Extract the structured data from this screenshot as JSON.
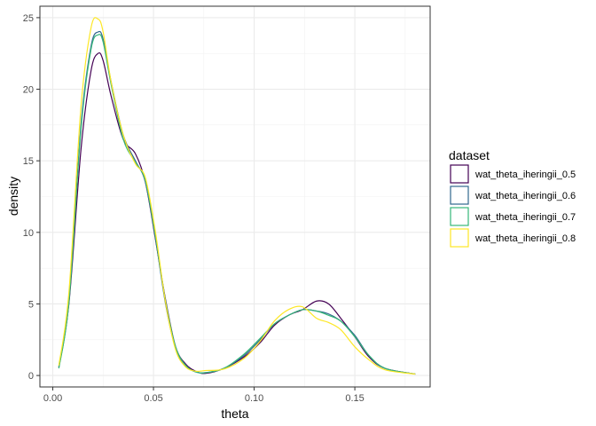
{
  "chart_data": {
    "type": "line",
    "title": "",
    "xlabel": "theta",
    "ylabel": "density",
    "xlim": [
      -0.0064,
      0.1874
    ],
    "ylim": [
      -0.8,
      25.8
    ],
    "x_ticks": [
      0.0,
      0.05,
      0.1,
      0.15
    ],
    "x_tick_labels": [
      "0.00",
      "0.05",
      "0.10",
      "0.15"
    ],
    "y_ticks": [
      0,
      5,
      10,
      15,
      20,
      25
    ],
    "y_tick_labels": [
      "0",
      "5",
      "10",
      "15",
      "20",
      "25"
    ],
    "grid": true,
    "legend": {
      "title": "dataset",
      "position": "right"
    },
    "series": [
      {
        "name": "wat_theta_iheringii_0.5",
        "color": "#440154",
        "x": [
          0.003,
          0.008,
          0.014,
          0.019,
          0.0225,
          0.025,
          0.029,
          0.035,
          0.041,
          0.046,
          0.051,
          0.056,
          0.061,
          0.066,
          0.071,
          0.076,
          0.085,
          0.095,
          0.103,
          0.11,
          0.117,
          0.124,
          0.131,
          0.137,
          0.143,
          0.15,
          0.157,
          0.165,
          0.18
        ],
        "y": [
          0.6,
          5.0,
          15.8,
          21.3,
          22.5,
          22.0,
          19.5,
          16.5,
          15.5,
          13.5,
          9.5,
          5.3,
          2.0,
          0.8,
          0.3,
          0.15,
          0.5,
          1.3,
          2.3,
          3.5,
          4.2,
          4.6,
          5.2,
          5.0,
          4.0,
          2.7,
          1.3,
          0.5,
          0.1
        ]
      },
      {
        "name": "wat_theta_iheringii_0.6",
        "color": "#31688E",
        "x": [
          0.003,
          0.008,
          0.014,
          0.019,
          0.0225,
          0.025,
          0.029,
          0.035,
          0.041,
          0.046,
          0.051,
          0.056,
          0.061,
          0.066,
          0.071,
          0.076,
          0.085,
          0.095,
          0.103,
          0.11,
          0.117,
          0.124,
          0.131,
          0.137,
          0.143,
          0.15,
          0.157,
          0.165,
          0.18
        ],
        "y": [
          0.55,
          5.2,
          17.5,
          23.0,
          24.0,
          23.5,
          20.5,
          16.8,
          15.0,
          13.5,
          9.6,
          5.0,
          1.9,
          0.7,
          0.25,
          0.2,
          0.5,
          1.4,
          2.5,
          3.6,
          4.2,
          4.6,
          4.5,
          4.3,
          3.8,
          2.8,
          1.4,
          0.5,
          0.1
        ]
      },
      {
        "name": "wat_theta_iheringii_0.7",
        "color": "#35B779",
        "x": [
          0.003,
          0.008,
          0.014,
          0.019,
          0.0225,
          0.025,
          0.029,
          0.035,
          0.041,
          0.046,
          0.051,
          0.056,
          0.061,
          0.066,
          0.071,
          0.076,
          0.085,
          0.095,
          0.103,
          0.11,
          0.117,
          0.124,
          0.131,
          0.137,
          0.143,
          0.15,
          0.157,
          0.165,
          0.18
        ],
        "y": [
          0.5,
          5.1,
          17.2,
          22.8,
          23.8,
          23.3,
          20.3,
          16.5,
          14.9,
          13.6,
          9.7,
          5.2,
          2.0,
          0.7,
          0.25,
          0.2,
          0.5,
          1.5,
          2.6,
          3.6,
          4.2,
          4.6,
          4.5,
          4.2,
          3.8,
          2.7,
          1.4,
          0.5,
          0.1
        ]
      },
      {
        "name": "wat_theta_iheringii_0.8",
        "color": "#FDE725",
        "x": [
          0.003,
          0.008,
          0.014,
          0.019,
          0.0225,
          0.025,
          0.029,
          0.035,
          0.041,
          0.046,
          0.051,
          0.056,
          0.061,
          0.066,
          0.071,
          0.076,
          0.085,
          0.095,
          0.103,
          0.11,
          0.117,
          0.124,
          0.131,
          0.137,
          0.143,
          0.15,
          0.157,
          0.165,
          0.18
        ],
        "y": [
          0.7,
          5.8,
          18.8,
          24.3,
          24.9,
          24.0,
          20.5,
          16.8,
          14.8,
          13.8,
          10.0,
          5.1,
          1.8,
          0.6,
          0.3,
          0.35,
          0.45,
          1.2,
          2.4,
          3.8,
          4.6,
          4.8,
          4.0,
          3.7,
          3.2,
          2.0,
          1.1,
          0.4,
          0.1
        ]
      }
    ]
  }
}
